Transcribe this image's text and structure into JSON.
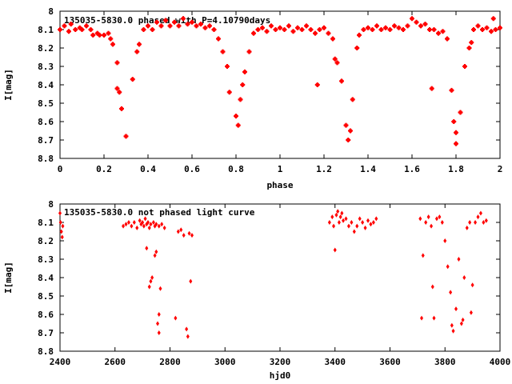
{
  "chart_data": [
    {
      "type": "scatter",
      "title": "135035-5830.0 phased with P=4.10790days",
      "xlabel": "phase",
      "ylabel": "I[mag]",
      "xlim": [
        0,
        2
      ],
      "ylim": [
        8.8,
        8.0
      ],
      "y_inverted": true,
      "x_ticks": [
        "0",
        "0.2",
        "0.4",
        "0.6",
        "0.8",
        "1",
        "1.2",
        "1.4",
        "1.6",
        "1.8",
        "2"
      ],
      "y_ticks": [
        "8",
        "8.1",
        "8.2",
        "8.3",
        "8.4",
        "8.5",
        "8.6",
        "8.7",
        "8.8"
      ],
      "grid": false,
      "marker_color": "#ff0000",
      "series": [
        {
          "points": [
            [
              0.0,
              8.1
            ],
            [
              0.02,
              8.08
            ],
            [
              0.04,
              8.11
            ],
            [
              0.05,
              8.07
            ],
            [
              0.07,
              8.1
            ],
            [
              0.09,
              8.09
            ],
            [
              0.1,
              8.1
            ],
            [
              0.12,
              8.08
            ],
            [
              0.14,
              8.1
            ],
            [
              0.15,
              8.13
            ],
            [
              0.17,
              8.12
            ],
            [
              0.18,
              8.13
            ],
            [
              0.2,
              8.13
            ],
            [
              0.22,
              8.12
            ],
            [
              0.23,
              8.15
            ],
            [
              0.24,
              8.18
            ],
            [
              0.26,
              8.28
            ],
            [
              0.26,
              8.42
            ],
            [
              0.27,
              8.44
            ],
            [
              0.28,
              8.53
            ],
            [
              0.3,
              8.68
            ],
            [
              0.33,
              8.37
            ],
            [
              0.35,
              8.22
            ],
            [
              0.36,
              8.18
            ],
            [
              0.38,
              8.1
            ],
            [
              0.4,
              8.08
            ],
            [
              0.42,
              8.1
            ],
            [
              0.44,
              8.06
            ],
            [
              0.46,
              8.08
            ],
            [
              0.48,
              8.05
            ],
            [
              0.5,
              8.08
            ],
            [
              0.52,
              8.06
            ],
            [
              0.54,
              8.08
            ],
            [
              0.56,
              8.04
            ],
            [
              0.58,
              8.07
            ],
            [
              0.6,
              8.06
            ],
            [
              0.62,
              8.08
            ],
            [
              0.64,
              8.07
            ],
            [
              0.66,
              8.09
            ],
            [
              0.68,
              8.08
            ],
            [
              0.7,
              8.1
            ],
            [
              0.72,
              8.15
            ],
            [
              0.74,
              8.22
            ],
            [
              0.76,
              8.3
            ],
            [
              0.77,
              8.44
            ],
            [
              0.8,
              8.57
            ],
            [
              0.81,
              8.62
            ],
            [
              0.82,
              8.48
            ],
            [
              0.83,
              8.4
            ],
            [
              0.84,
              8.33
            ],
            [
              0.86,
              8.22
            ],
            [
              0.88,
              8.12
            ],
            [
              0.9,
              8.1
            ],
            [
              0.92,
              8.09
            ],
            [
              0.94,
              8.11
            ],
            [
              0.96,
              8.08
            ],
            [
              0.98,
              8.1
            ],
            [
              1.0,
              8.09
            ],
            [
              1.02,
              8.1
            ],
            [
              1.04,
              8.08
            ],
            [
              1.06,
              8.11
            ],
            [
              1.08,
              8.09
            ],
            [
              1.1,
              8.1
            ],
            [
              1.12,
              8.08
            ],
            [
              1.14,
              8.1
            ],
            [
              1.16,
              8.12
            ],
            [
              1.17,
              8.4
            ],
            [
              1.18,
              8.1
            ],
            [
              1.2,
              8.09
            ],
            [
              1.22,
              8.12
            ],
            [
              1.24,
              8.15
            ],
            [
              1.25,
              8.26
            ],
            [
              1.26,
              8.28
            ],
            [
              1.28,
              8.38
            ],
            [
              1.3,
              8.62
            ],
            [
              1.31,
              8.7
            ],
            [
              1.32,
              8.65
            ],
            [
              1.33,
              8.48
            ],
            [
              1.35,
              8.2
            ],
            [
              1.36,
              8.13
            ],
            [
              1.38,
              8.1
            ],
            [
              1.4,
              8.09
            ],
            [
              1.42,
              8.1
            ],
            [
              1.44,
              8.08
            ],
            [
              1.46,
              8.1
            ],
            [
              1.48,
              8.09
            ],
            [
              1.5,
              8.1
            ],
            [
              1.52,
              8.08
            ],
            [
              1.54,
              8.09
            ],
            [
              1.56,
              8.1
            ],
            [
              1.58,
              8.08
            ],
            [
              1.6,
              8.04
            ],
            [
              1.62,
              8.06
            ],
            [
              1.64,
              8.08
            ],
            [
              1.66,
              8.07
            ],
            [
              1.68,
              8.1
            ],
            [
              1.69,
              8.42
            ],
            [
              1.7,
              8.1
            ],
            [
              1.72,
              8.12
            ],
            [
              1.74,
              8.11
            ],
            [
              1.76,
              8.15
            ],
            [
              1.78,
              8.43
            ],
            [
              1.79,
              8.6
            ],
            [
              1.8,
              8.66
            ],
            [
              1.8,
              8.72
            ],
            [
              1.82,
              8.55
            ],
            [
              1.84,
              8.3
            ],
            [
              1.86,
              8.2
            ],
            [
              1.87,
              8.17
            ],
            [
              1.88,
              8.1
            ],
            [
              1.9,
              8.08
            ],
            [
              1.92,
              8.1
            ],
            [
              1.94,
              8.09
            ],
            [
              1.96,
              8.11
            ],
            [
              1.97,
              8.04
            ],
            [
              1.98,
              8.1
            ],
            [
              2.0,
              8.09
            ]
          ]
        }
      ]
    },
    {
      "type": "scatter",
      "title": "135035-5830.0 not phased light curve",
      "xlabel": "hjd0",
      "ylabel": "I[mag]",
      "xlim": [
        2400,
        4000
      ],
      "ylim": [
        8.8,
        8.0
      ],
      "y_inverted": true,
      "x_ticks": [
        "2400",
        "2600",
        "2800",
        "3000",
        "3200",
        "3400",
        "3600",
        "3800",
        "4000"
      ],
      "y_ticks": [
        "8",
        "8.1",
        "8.2",
        "8.3",
        "8.4",
        "8.5",
        "8.6",
        "8.7",
        "8.8"
      ],
      "grid": false,
      "marker_color": "#ff0000",
      "series": [
        {
          "points": [
            [
              2400,
              8.05
            ],
            [
              2402,
              8.1
            ],
            [
              2405,
              8.15
            ],
            [
              2408,
              8.18
            ],
            [
              2410,
              8.12
            ],
            [
              2630,
              8.12
            ],
            [
              2640,
              8.11
            ],
            [
              2650,
              8.1
            ],
            [
              2660,
              8.12
            ],
            [
              2670,
              8.1
            ],
            [
              2680,
              8.13
            ],
            [
              2690,
              8.09
            ],
            [
              2695,
              8.11
            ],
            [
              2700,
              8.1
            ],
            [
              2705,
              8.12
            ],
            [
              2710,
              8.08
            ],
            [
              2715,
              8.11
            ],
            [
              2720,
              8.1
            ],
            [
              2725,
              8.13
            ],
            [
              2730,
              8.11
            ],
            [
              2740,
              8.1
            ],
            [
              2745,
              8.12
            ],
            [
              2750,
              8.11
            ],
            [
              2760,
              8.12
            ],
            [
              2770,
              8.11
            ],
            [
              2780,
              8.13
            ],
            [
              2715,
              8.24
            ],
            [
              2725,
              8.45
            ],
            [
              2730,
              8.42
            ],
            [
              2735,
              8.4
            ],
            [
              2745,
              8.28
            ],
            [
              2750,
              8.26
            ],
            [
              2755,
              8.65
            ],
            [
              2760,
              8.6
            ],
            [
              2765,
              8.46
            ],
            [
              2760,
              8.7
            ],
            [
              2820,
              8.62
            ],
            [
              2830,
              8.15
            ],
            [
              2840,
              8.14
            ],
            [
              2850,
              8.17
            ],
            [
              2860,
              8.68
            ],
            [
              2865,
              8.72
            ],
            [
              2870,
              8.16
            ],
            [
              2875,
              8.42
            ],
            [
              2880,
              8.17
            ],
            [
              3380,
              8.1
            ],
            [
              3390,
              8.07
            ],
            [
              3395,
              8.12
            ],
            [
              3400,
              8.25
            ],
            [
              3405,
              8.06
            ],
            [
              3410,
              8.04
            ],
            [
              3415,
              8.1
            ],
            [
              3420,
              8.07
            ],
            [
              3425,
              8.05
            ],
            [
              3430,
              8.09
            ],
            [
              3440,
              8.08
            ],
            [
              3450,
              8.12
            ],
            [
              3460,
              8.1
            ],
            [
              3470,
              8.15
            ],
            [
              3480,
              8.12
            ],
            [
              3490,
              8.08
            ],
            [
              3500,
              8.1
            ],
            [
              3510,
              8.13
            ],
            [
              3520,
              8.09
            ],
            [
              3530,
              8.11
            ],
            [
              3540,
              8.1
            ],
            [
              3550,
              8.08
            ],
            [
              3710,
              8.08
            ],
            [
              3715,
              8.62
            ],
            [
              3720,
              8.28
            ],
            [
              3730,
              8.1
            ],
            [
              3740,
              8.07
            ],
            [
              3750,
              8.12
            ],
            [
              3755,
              8.45
            ],
            [
              3760,
              8.62
            ],
            [
              3770,
              8.08
            ],
            [
              3780,
              8.07
            ],
            [
              3790,
              8.1
            ],
            [
              3800,
              8.2
            ],
            [
              3810,
              8.34
            ],
            [
              3820,
              8.48
            ],
            [
              3825,
              8.66
            ],
            [
              3830,
              8.69
            ],
            [
              3840,
              8.57
            ],
            [
              3850,
              8.3
            ],
            [
              3860,
              8.65
            ],
            [
              3865,
              8.63
            ],
            [
              3870,
              8.4
            ],
            [
              3880,
              8.13
            ],
            [
              3890,
              8.1
            ],
            [
              3895,
              8.59
            ],
            [
              3900,
              8.44
            ],
            [
              3910,
              8.1
            ],
            [
              3920,
              8.07
            ],
            [
              3930,
              8.05
            ],
            [
              3940,
              8.1
            ],
            [
              3950,
              8.09
            ]
          ]
        }
      ]
    }
  ]
}
